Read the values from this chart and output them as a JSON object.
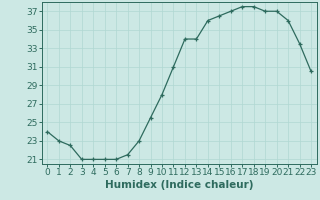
{
  "x": [
    0,
    1,
    2,
    3,
    4,
    5,
    6,
    7,
    8,
    9,
    10,
    11,
    12,
    13,
    14,
    15,
    16,
    17,
    18,
    19,
    20,
    21,
    22,
    23
  ],
  "y": [
    24,
    23,
    22.5,
    21,
    21,
    21,
    21,
    21.5,
    23,
    25.5,
    28,
    31,
    34,
    34,
    36,
    36.5,
    37,
    37.5,
    37.5,
    37,
    37,
    36,
    33.5,
    30.5
  ],
  "line_color": "#2e6b5e",
  "marker": "+",
  "marker_color": "#2e6b5e",
  "bg_color": "#cce8e4",
  "grid_color": "#b0d8d2",
  "xlabel": "Humidex (Indice chaleur)",
  "xlim": [
    -0.5,
    23.5
  ],
  "ylim": [
    20.5,
    38
  ],
  "yticks": [
    21,
    23,
    25,
    27,
    29,
    31,
    33,
    35,
    37
  ],
  "xticks": [
    0,
    1,
    2,
    3,
    4,
    5,
    6,
    7,
    8,
    9,
    10,
    11,
    12,
    13,
    14,
    15,
    16,
    17,
    18,
    19,
    20,
    21,
    22,
    23
  ],
  "tick_fontsize": 6.5,
  "xlabel_fontsize": 7.5,
  "linewidth": 0.9,
  "markersize": 3.5
}
